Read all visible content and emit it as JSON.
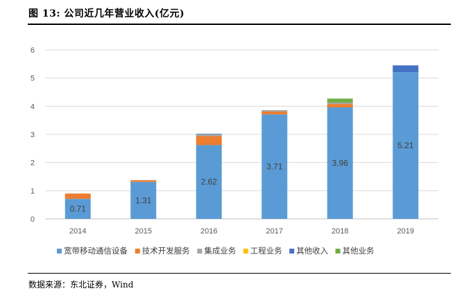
{
  "figure": {
    "title": "图 13: 公司近几年营业收入(亿元)",
    "source": "数据来源：东北证券，Wind"
  },
  "chart_data": {
    "type": "bar",
    "stacked": true,
    "categories": [
      "2014",
      "2015",
      "2016",
      "2017",
      "2018",
      "2019"
    ],
    "ylim": [
      0,
      6
    ],
    "yticks": [
      0,
      1,
      2,
      3,
      4,
      5,
      6
    ],
    "grid": true,
    "legend_position": "bottom",
    "series": [
      {
        "name": "宽带移动通信设备",
        "color": "#5B9BD5",
        "values": [
          0.71,
          1.31,
          2.62,
          3.71,
          3.96,
          5.21
        ],
        "labels": [
          "0.71",
          "1.31",
          "2.62",
          "3.71",
          "3.96",
          "5.21"
        ]
      },
      {
        "name": "技术开发服务",
        "color": "#ED7D31",
        "values": [
          0.19,
          0.06,
          0.32,
          0.1,
          0.12,
          0.0
        ]
      },
      {
        "name": "集成业务",
        "color": "#A5A5A5",
        "values": [
          0.0,
          0.01,
          0.06,
          0.05,
          0.05,
          0.0
        ]
      },
      {
        "name": "工程业务",
        "color": "#FFC000",
        "values": [
          0.0,
          0.0,
          0.0,
          0.0,
          0.0,
          0.0
        ]
      },
      {
        "name": "其他收入",
        "color": "#4472C4",
        "values": [
          0.0,
          0.0,
          0.02,
          0.0,
          0.0,
          0.24
        ]
      },
      {
        "name": "其他业务",
        "color": "#70AD47",
        "values": [
          0.0,
          0.0,
          0.0,
          0.0,
          0.14,
          0.0
        ]
      }
    ]
  }
}
